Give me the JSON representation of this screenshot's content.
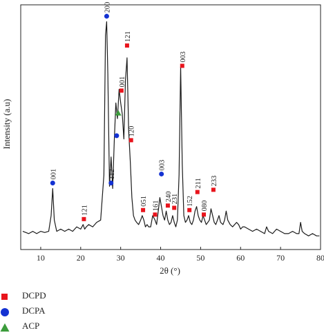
{
  "chart_data": {
    "type": "line",
    "xlabel": "2θ (°)",
    "ylabel": "Intensity (a.u)",
    "xlim": [
      5,
      80
    ],
    "ylim": [
      0,
      1
    ],
    "xticks": [
      10,
      20,
      30,
      40,
      50,
      60,
      70,
      80
    ],
    "grid": false,
    "legend_position": "bottom-left",
    "colors": {
      "DCPD": "#e8141c",
      "DCPA": "#1432d2",
      "ACP": "#3c9c3c",
      "line": "#1a1a1a"
    },
    "series": [
      {
        "x": [
          5.5,
          7,
          8,
          9,
          10,
          11,
          12,
          12.6,
          13.0,
          13.4,
          14,
          15,
          16,
          17,
          18,
          19,
          20,
          20.6,
          21.0,
          21.4,
          22,
          23,
          24,
          25,
          25.8,
          26.2,
          26.5,
          26.8,
          27.2,
          27.6,
          28.0,
          28.4,
          28.8,
          29.2,
          29.6,
          30.0,
          30.4,
          30.8,
          31.2,
          31.6,
          32.0,
          32.4,
          32.8,
          33.2,
          33.6,
          34,
          34.5,
          35,
          35.4,
          35.8,
          36.2,
          36.6,
          37,
          37.5,
          38,
          38.6,
          39,
          39.4,
          39.8,
          40.2,
          40.6,
          41.0,
          41.4,
          41.8,
          42.2,
          42.6,
          43.0,
          43.4,
          43.8,
          44.2,
          44.6,
          45.0,
          45.4,
          45.8,
          46.2,
          46.6,
          47.0,
          47.4,
          47.8,
          48.2,
          48.6,
          49.0,
          49.4,
          49.8,
          50.2,
          50.6,
          51.0,
          51.4,
          51.8,
          52.2,
          52.6,
          53.0,
          53.4,
          53.8,
          54.2,
          54.6,
          55,
          55.6,
          56,
          56.4,
          56.8,
          57.4,
          58,
          58.5,
          59,
          59.5,
          60,
          60.5,
          61,
          62,
          63,
          64,
          65,
          66,
          66.5,
          67,
          68,
          69,
          70,
          71,
          72,
          73,
          74,
          74.6,
          75,
          75.4,
          76,
          77,
          78,
          79,
          79.7
        ],
        "y": [
          0.05,
          0.04,
          0.05,
          0.04,
          0.05,
          0.045,
          0.05,
          0.12,
          0.24,
          0.1,
          0.05,
          0.06,
          0.05,
          0.06,
          0.05,
          0.07,
          0.06,
          0.08,
          0.06,
          0.07,
          0.08,
          0.07,
          0.09,
          0.1,
          0.3,
          0.92,
          0.98,
          0.75,
          0.25,
          0.38,
          0.24,
          0.45,
          0.62,
          0.55,
          0.68,
          0.62,
          0.57,
          0.46,
          0.72,
          0.82,
          0.5,
          0.36,
          0.2,
          0.12,
          0.1,
          0.09,
          0.08,
          0.1,
          0.12,
          0.1,
          0.07,
          0.08,
          0.07,
          0.07,
          0.12,
          0.1,
          0.08,
          0.14,
          0.2,
          0.16,
          0.12,
          0.1,
          0.14,
          0.1,
          0.08,
          0.09,
          0.12,
          0.09,
          0.07,
          0.1,
          0.3,
          0.78,
          0.35,
          0.12,
          0.09,
          0.1,
          0.12,
          0.09,
          0.08,
          0.1,
          0.14,
          0.16,
          0.12,
          0.1,
          0.09,
          0.12,
          0.1,
          0.08,
          0.09,
          0.1,
          0.15,
          0.12,
          0.09,
          0.08,
          0.1,
          0.12,
          0.09,
          0.08,
          0.1,
          0.14,
          0.1,
          0.08,
          0.07,
          0.08,
          0.09,
          0.08,
          0.06,
          0.07,
          0.07,
          0.06,
          0.05,
          0.06,
          0.05,
          0.04,
          0.07,
          0.05,
          0.04,
          0.06,
          0.05,
          0.04,
          0.04,
          0.05,
          0.04,
          0.04,
          0.09,
          0.05,
          0.04,
          0.03,
          0.04,
          0.03,
          0.03
        ]
      }
    ],
    "annotations": [
      {
        "x": 13.0,
        "y": 0.24,
        "phase": "DCPA",
        "label": "001"
      },
      {
        "x": 20.8,
        "y": 0.08,
        "phase": "DCPD",
        "label": "121"
      },
      {
        "x": 26.5,
        "y": 0.98,
        "phase": "DCPA",
        "label": "200"
      },
      {
        "x": 27.6,
        "y": 0.24,
        "phase": "DCPA",
        "label": "112"
      },
      {
        "x": 29.0,
        "y": 0.45,
        "phase": "DCPA",
        "label": ""
      },
      {
        "x": 29.4,
        "y": 0.55,
        "phase": "ACP",
        "label": ""
      },
      {
        "x": 30.2,
        "y": 0.65,
        "phase": "DCPD",
        "label": "001"
      },
      {
        "x": 31.6,
        "y": 0.85,
        "phase": "DCPD",
        "label": "121"
      },
      {
        "x": 32.6,
        "y": 0.43,
        "phase": "DCPD",
        "label": "120"
      },
      {
        "x": 35.6,
        "y": 0.12,
        "phase": "DCPD",
        "label": "051"
      },
      {
        "x": 38.6,
        "y": 0.1,
        "phase": "DCPD",
        "label": "161"
      },
      {
        "x": 40.2,
        "y": 0.28,
        "phase": "DCPA",
        "label": "003"
      },
      {
        "x": 41.8,
        "y": 0.14,
        "phase": "DCPD",
        "label": "240"
      },
      {
        "x": 43.4,
        "y": 0.13,
        "phase": "DCPD",
        "label": "231"
      },
      {
        "x": 45.4,
        "y": 0.76,
        "phase": "DCPD",
        "label": "003"
      },
      {
        "x": 47.2,
        "y": 0.12,
        "phase": "DCPD",
        "label": "152"
      },
      {
        "x": 49.2,
        "y": 0.2,
        "phase": "DCPD",
        "label": "211"
      },
      {
        "x": 50.8,
        "y": 0.1,
        "phase": "DCPD",
        "label": "080"
      },
      {
        "x": 53.2,
        "y": 0.21,
        "phase": "DCPD",
        "label": "233"
      }
    ]
  },
  "legend": {
    "items": [
      {
        "name": "DCPD",
        "shape": "square-icon",
        "color": "#e8141c"
      },
      {
        "name": "DCPA",
        "shape": "circle-icon",
        "color": "#1432d2"
      },
      {
        "name": "ACP",
        "shape": "triangle-icon",
        "color": "#3c9c3c"
      }
    ]
  }
}
